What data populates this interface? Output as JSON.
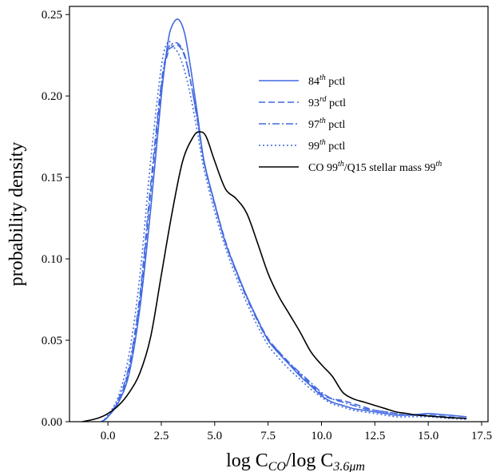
{
  "chart_data": {
    "type": "line",
    "xlabel": {
      "main": "log C",
      "sub1": "CO",
      "mid": "/log C",
      "sub2": "3.6μm"
    },
    "ylabel": "probability density",
    "xlim": [
      -1.8,
      17.8
    ],
    "ylim": [
      0,
      0.255
    ],
    "xticks": [
      0.0,
      2.5,
      5.0,
      7.5,
      10.0,
      12.5,
      15.0,
      17.5
    ],
    "xtick_labels": [
      "0.0",
      "2.5",
      "5.0",
      "7.5",
      "10.0",
      "12.5",
      "15.0",
      "17.5"
    ],
    "yticks": [
      0.0,
      0.05,
      0.1,
      0.15,
      0.2,
      0.25
    ],
    "ytick_labels": [
      "0.00",
      "0.05",
      "0.10",
      "0.15",
      "0.20",
      "0.25"
    ],
    "grid": false,
    "legend_position": "upper-right",
    "series": [
      {
        "name": "84th pctl",
        "legend_base": "84",
        "legend_sup": "th",
        "legend_tail": " pctl",
        "color": "#4169e1",
        "dash": "solid",
        "x": [
          -0.3,
          0,
          0.5,
          1,
          1.5,
          2,
          2.5,
          2.8,
          3.0,
          3.3,
          3.6,
          3.9,
          4.2,
          4.5,
          5,
          5.5,
          6,
          6.5,
          7,
          7.5,
          8,
          8.5,
          9,
          9.5,
          10,
          10.5,
          11,
          11.5,
          12,
          12.5,
          13,
          13.5,
          14,
          14.5,
          15,
          15.5,
          16,
          16.8
        ],
        "y": [
          0,
          0.003,
          0.012,
          0.03,
          0.07,
          0.13,
          0.2,
          0.232,
          0.243,
          0.247,
          0.238,
          0.215,
          0.188,
          0.16,
          0.134,
          0.11,
          0.093,
          0.077,
          0.063,
          0.05,
          0.042,
          0.035,
          0.028,
          0.022,
          0.016,
          0.012,
          0.01,
          0.008,
          0.007,
          0.006,
          0.005,
          0.004,
          0.004,
          0.0045,
          0.005,
          0.0045,
          0.004,
          0.003
        ]
      },
      {
        "name": "93rd pctl",
        "legend_base": "93",
        "legend_sup": "rd",
        "legend_tail": " pctl",
        "color": "#4169e1",
        "dash": "8,4",
        "x": [
          -0.3,
          0,
          0.5,
          1,
          1.5,
          2,
          2.5,
          2.8,
          3.0,
          3.3,
          3.6,
          3.9,
          4.2,
          4.5,
          5,
          5.5,
          6,
          6.5,
          7,
          7.5,
          8,
          8.5,
          9,
          9.5,
          10,
          10.5,
          11,
          11.5,
          12,
          12.5,
          13,
          13.5,
          14,
          14.5,
          15,
          15.5,
          16,
          16.8
        ],
        "y": [
          0,
          0.003,
          0.013,
          0.033,
          0.075,
          0.14,
          0.205,
          0.226,
          0.23,
          0.231,
          0.224,
          0.207,
          0.185,
          0.16,
          0.134,
          0.111,
          0.093,
          0.077,
          0.063,
          0.051,
          0.043,
          0.036,
          0.029,
          0.023,
          0.017,
          0.014,
          0.013,
          0.011,
          0.009,
          0.007,
          0.006,
          0.005,
          0.004,
          0.004,
          0.004,
          0.0035,
          0.003,
          0.002
        ]
      },
      {
        "name": "97th pctl",
        "legend_base": "97",
        "legend_sup": "th",
        "legend_tail": " pctl",
        "color": "#4169e1",
        "dash": "9,3,2,3",
        "x": [
          -0.3,
          0,
          0.5,
          1,
          1.5,
          2,
          2.5,
          2.8,
          3.0,
          3.3,
          3.6,
          3.9,
          4.2,
          4.5,
          5,
          5.5,
          6,
          6.5,
          7,
          7.5,
          8,
          8.5,
          9,
          9.5,
          10,
          10.5,
          11,
          11.5,
          12,
          12.5,
          13,
          13.5,
          14,
          14.5,
          15,
          15.5,
          16,
          16.8
        ],
        "y": [
          0,
          0.003,
          0.014,
          0.035,
          0.078,
          0.145,
          0.208,
          0.228,
          0.232,
          0.232,
          0.225,
          0.207,
          0.184,
          0.159,
          0.133,
          0.11,
          0.092,
          0.076,
          0.062,
          0.05,
          0.043,
          0.036,
          0.03,
          0.024,
          0.018,
          0.014,
          0.012,
          0.01,
          0.008,
          0.007,
          0.006,
          0.005,
          0.004,
          0.004,
          0.0035,
          0.003,
          0.0025,
          0.002
        ]
      },
      {
        "name": "99th pctl",
        "legend_base": "99",
        "legend_sup": "th",
        "legend_tail": " pctl",
        "color": "#4169e1",
        "dash": "2,3",
        "x": [
          -0.3,
          0,
          0.5,
          1,
          1.5,
          2,
          2.5,
          2.8,
          3.0,
          3.3,
          3.6,
          3.9,
          4.2,
          4.5,
          5,
          5.5,
          6,
          6.5,
          7,
          7.5,
          8,
          8.5,
          9,
          9.5,
          10,
          10.5,
          11,
          11.5,
          12,
          12.5,
          13,
          13.5,
          14,
          14.5,
          15,
          15.5,
          16,
          16.8
        ],
        "y": [
          0,
          0.004,
          0.016,
          0.042,
          0.09,
          0.16,
          0.218,
          0.233,
          0.231,
          0.226,
          0.215,
          0.198,
          0.177,
          0.155,
          0.129,
          0.107,
          0.089,
          0.073,
          0.059,
          0.047,
          0.039,
          0.032,
          0.026,
          0.02,
          0.015,
          0.011,
          0.009,
          0.007,
          0.006,
          0.005,
          0.004,
          0.003,
          0.003,
          0.003,
          0.003,
          0.0025,
          0.002,
          0.0015
        ]
      },
      {
        "name": "CO 99th/Q15 stellar mass 99th",
        "legend_base": "CO 99",
        "legend_sup": "th",
        "legend_tail": "/Q15 stellar mass 99",
        "legend_sup2": "th",
        "color": "#000000",
        "dash": "solid",
        "x": [
          -1.2,
          -0.5,
          0,
          0.5,
          1,
          1.5,
          2,
          2.5,
          3,
          3.5,
          4,
          4.3,
          4.6,
          5,
          5.5,
          6,
          6.5,
          7,
          7.5,
          8,
          8.5,
          9,
          9.5,
          10,
          10.5,
          11,
          11.5,
          12,
          12.5,
          13,
          13.5,
          14,
          14.5,
          15,
          15.5,
          16,
          16.8
        ],
        "y": [
          0,
          0.002,
          0.005,
          0.01,
          0.018,
          0.03,
          0.052,
          0.09,
          0.128,
          0.16,
          0.175,
          0.178,
          0.175,
          0.16,
          0.143,
          0.137,
          0.128,
          0.11,
          0.091,
          0.077,
          0.066,
          0.055,
          0.043,
          0.035,
          0.028,
          0.018,
          0.014,
          0.012,
          0.01,
          0.008,
          0.006,
          0.005,
          0.004,
          0.0035,
          0.003,
          0.0025,
          0.002
        ]
      }
    ]
  }
}
